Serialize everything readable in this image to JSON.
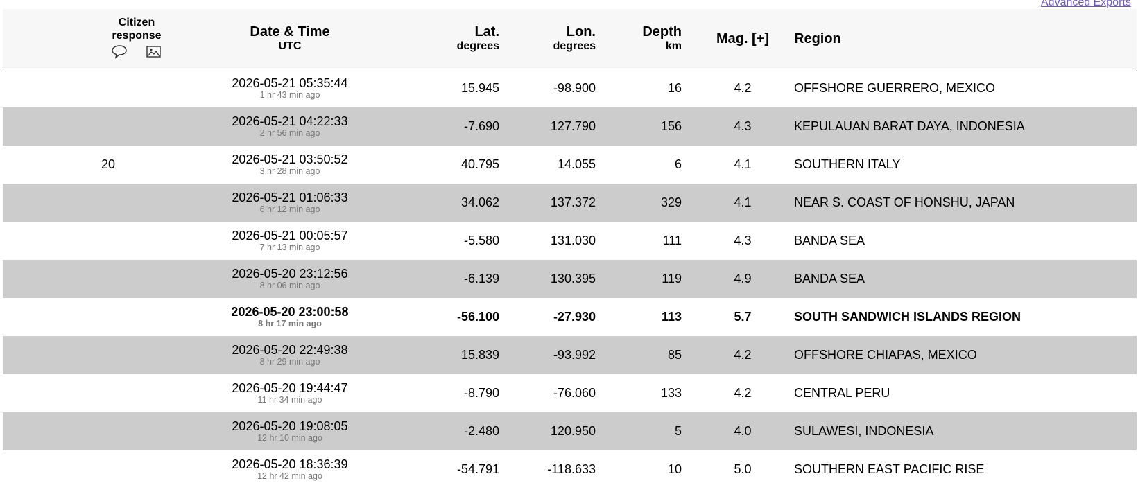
{
  "header_link": "Advanced Exports",
  "columns": {
    "citizen": {
      "title": "Citizen response"
    },
    "date": {
      "title": "Date & Time",
      "unit": "UTC"
    },
    "lat": {
      "title": "Lat.",
      "unit": "degrees"
    },
    "lon": {
      "title": "Lon.",
      "unit": "degrees"
    },
    "depth": {
      "title": "Depth",
      "unit": "km"
    },
    "mag": {
      "title": "Mag. [+]"
    },
    "region": {
      "title": "Region"
    }
  },
  "rows": [
    {
      "date": "2026-05-21 05:35:44",
      "ago": "1 hr 43 min ago",
      "lat": "15.945",
      "lon": "-98.900",
      "depth": "16",
      "mag": "4.2",
      "region": "OFFSHORE GUERRERO, MEXICO"
    },
    {
      "date": "2026-05-21 04:22:33",
      "ago": "2 hr 56 min ago",
      "lat": "-7.690",
      "lon": "127.790",
      "depth": "156",
      "mag": "4.3",
      "region": "KEPULAUAN BARAT DAYA, INDONESIA"
    },
    {
      "citizen": "20",
      "date": "2026-05-21 03:50:52",
      "ago": "3 hr 28 min ago",
      "lat": "40.795",
      "lon": "14.055",
      "depth": "6",
      "mag": "4.1",
      "region": "SOUTHERN ITALY"
    },
    {
      "date": "2026-05-21 01:06:33",
      "ago": "6 hr 12 min ago",
      "lat": "34.062",
      "lon": "137.372",
      "depth": "329",
      "mag": "4.1",
      "region": "NEAR S. COAST OF HONSHU, JAPAN"
    },
    {
      "date": "2026-05-21 00:05:57",
      "ago": "7 hr 13 min ago",
      "lat": "-5.580",
      "lon": "131.030",
      "depth": "111",
      "mag": "4.3",
      "region": "BANDA SEA"
    },
    {
      "date": "2026-05-20 23:12:56",
      "ago": "8 hr 06 min ago",
      "lat": "-6.139",
      "lon": "130.395",
      "depth": "119",
      "mag": "4.9",
      "region": "BANDA SEA"
    },
    {
      "date": "2026-05-20 23:00:58",
      "ago": "8 hr 17 min ago",
      "lat": "-56.100",
      "lon": "-27.930",
      "depth": "113",
      "mag": "5.7",
      "region": "SOUTH SANDWICH ISLANDS REGION",
      "bold": true
    },
    {
      "date": "2026-05-20 22:49:38",
      "ago": "8 hr 29 min ago",
      "lat": "15.839",
      "lon": "-93.992",
      "depth": "85",
      "mag": "4.2",
      "region": "OFFSHORE CHIAPAS, MEXICO"
    },
    {
      "date": "2026-05-20 19:44:47",
      "ago": "11 hr 34 min ago",
      "lat": "-8.790",
      "lon": "-76.060",
      "depth": "133",
      "mag": "4.2",
      "region": "CENTRAL PERU"
    },
    {
      "date": "2026-05-20 19:08:05",
      "ago": "12 hr 10 min ago",
      "lat": "-2.480",
      "lon": "120.950",
      "depth": "5",
      "mag": "4.0",
      "region": "SULAWESI, INDONESIA"
    },
    {
      "date": "2026-05-20 18:36:39",
      "ago": "12 hr 42 min ago",
      "lat": "-54.791",
      "lon": "-118.633",
      "depth": "10",
      "mag": "5.0",
      "region": "SOUTHERN EAST PACIFIC RISE"
    }
  ]
}
